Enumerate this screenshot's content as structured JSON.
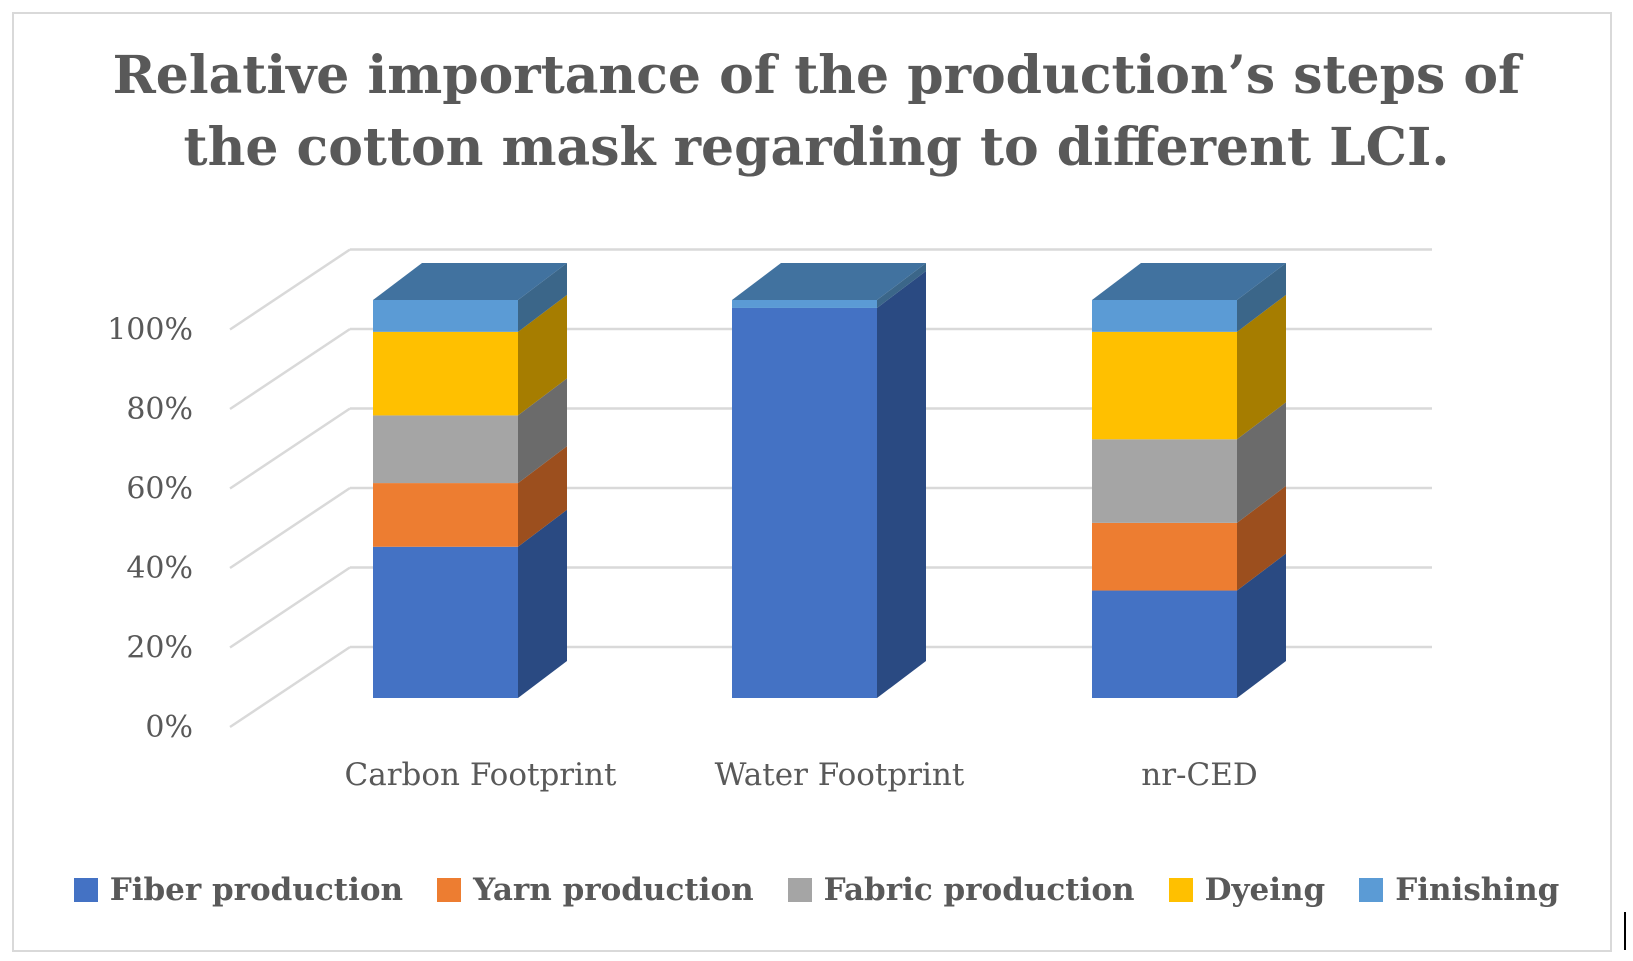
{
  "chart_data": {
    "type": "bar",
    "stacked": true,
    "percent_stacked": true,
    "three_d": true,
    "title": "Relative importance of the production’s steps of\nthe cotton mask regarding to different LCI.",
    "categories": [
      "Carbon Footprint",
      "Water Footprint",
      "nr-CED"
    ],
    "series": [
      {
        "name": "Fiber production",
        "color": "#4472c4",
        "side": "#2a4a82",
        "top": "#3a5f9e",
        "values": [
          38,
          98,
          27
        ]
      },
      {
        "name": "Yarn production",
        "color": "#ed7d31",
        "side": "#9c4f1e",
        "top": "#c4682a",
        "values": [
          16,
          0,
          17
        ]
      },
      {
        "name": "Fabric production",
        "color": "#a5a5a5",
        "side": "#6b6b6b",
        "top": "#8a8a8a",
        "values": [
          17,
          0,
          21
        ]
      },
      {
        "name": "Dyeing",
        "color": "#ffc000",
        "side": "#a67d00",
        "top": "#d4a000",
        "values": [
          21,
          0,
          27
        ]
      },
      {
        "name": "Finishing",
        "color": "#5b9bd5",
        "side": "#3b6689",
        "top": "#41729f",
        "values": [
          8,
          2,
          8
        ]
      }
    ],
    "y_ticks": [
      "0%",
      "20%",
      "40%",
      "60%",
      "80%",
      "100%"
    ],
    "ylim": [
      0,
      100
    ],
    "grid": true,
    "legend_position": "bottom"
  }
}
